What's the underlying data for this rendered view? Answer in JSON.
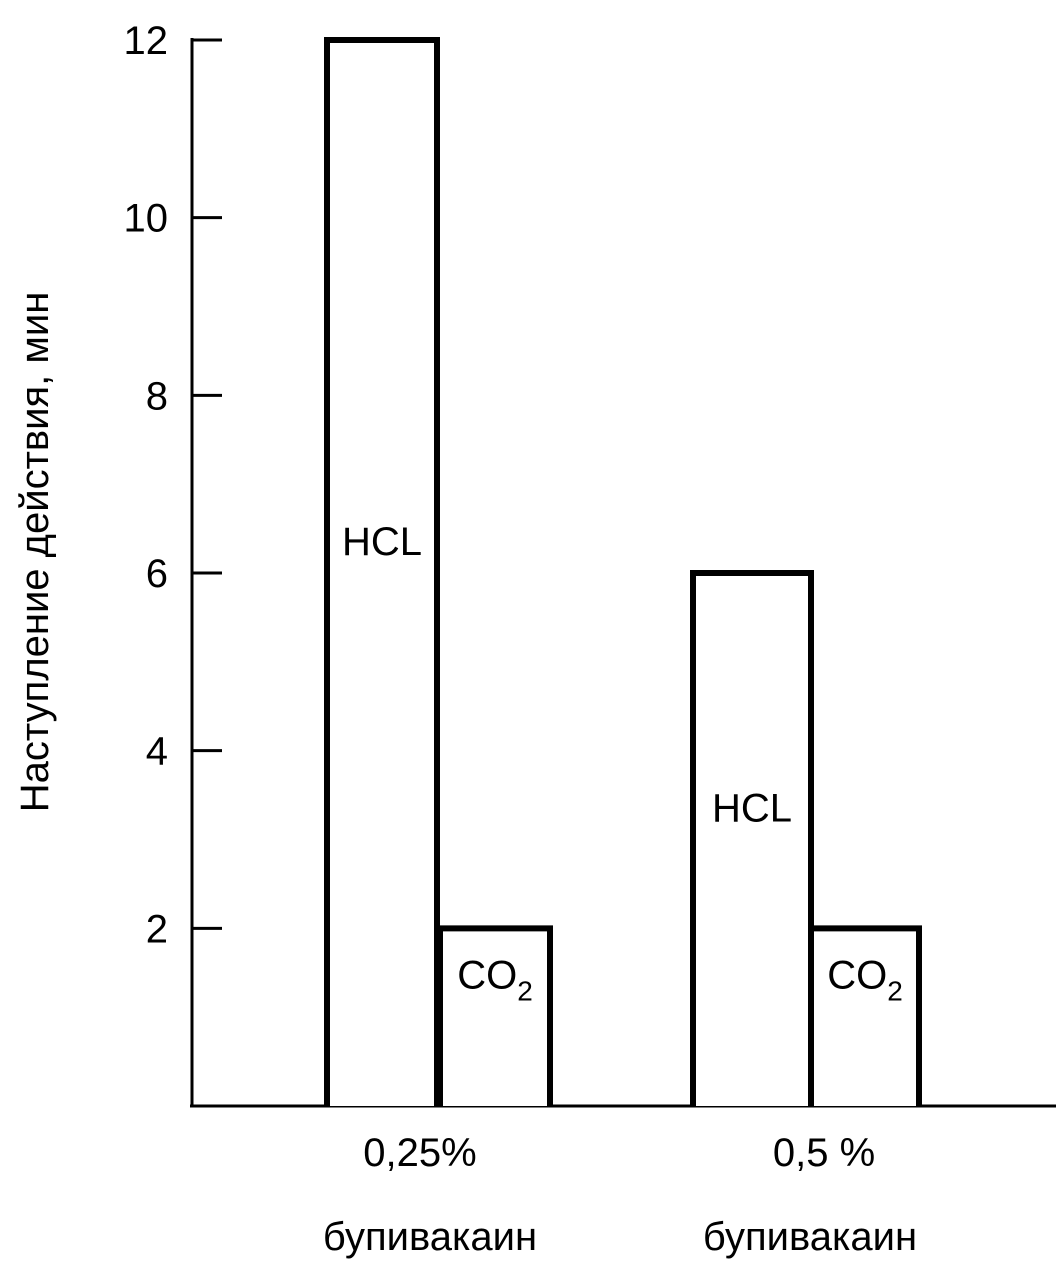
{
  "chart_data": {
    "type": "bar",
    "title": "",
    "xlabel": "",
    "ylabel": "Наступление действия, мин",
    "ylim": [
      0,
      12
    ],
    "yticks": [
      2,
      4,
      6,
      8,
      10,
      12
    ],
    "grid": false,
    "legend": "none",
    "categories": [
      {
        "line1": "0,25%",
        "line2": "бупивакаин"
      },
      {
        "line1": "0,5 %",
        "line2": "бупивакаин"
      }
    ],
    "series": [
      {
        "label_main": "HCL",
        "label_sub": "",
        "values": [
          12,
          6
        ]
      },
      {
        "label_main": "CO",
        "label_sub": "2",
        "values": [
          2,
          2
        ]
      }
    ],
    "colors": {
      "stroke": "#000000",
      "fill": "#ffffff"
    }
  }
}
